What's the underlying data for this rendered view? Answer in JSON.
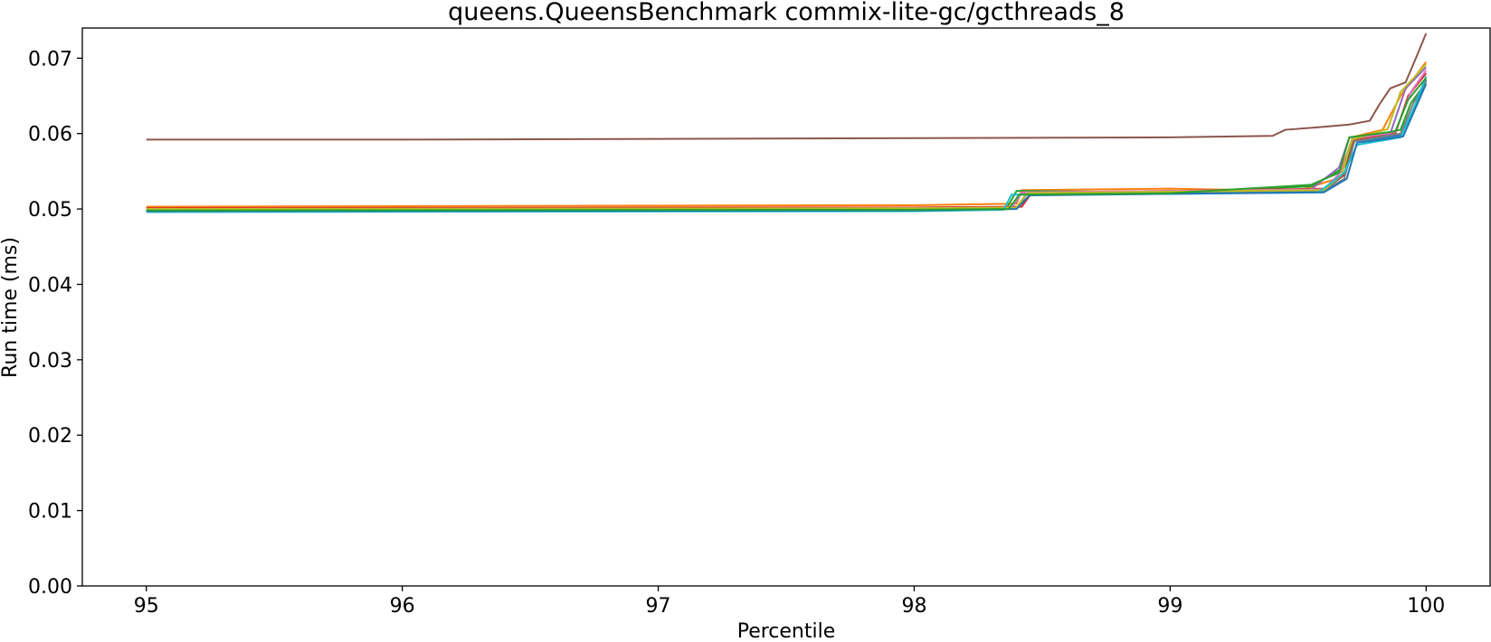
{
  "chart_data": {
    "type": "line",
    "title": "queens.QueensBenchmark commix-lite-gc/gcthreads_8",
    "xlabel": "Percentile",
    "ylabel": "Run time (ms)",
    "xlim": [
      94.75,
      100.25
    ],
    "ylim": [
      0.0,
      0.074
    ],
    "xticks": [
      95,
      96,
      97,
      98,
      99,
      100
    ],
    "yticks": [
      0.0,
      0.01,
      0.02,
      0.03,
      0.04,
      0.05,
      0.06,
      0.07
    ],
    "xtick_labels": [
      "95",
      "96",
      "97",
      "98",
      "99",
      "100"
    ],
    "ytick_labels": [
      "0.00",
      "0.01",
      "0.02",
      "0.03",
      "0.04",
      "0.05",
      "0.06",
      "0.07"
    ],
    "grid": false,
    "legend": "none",
    "series": [
      {
        "color": "#1f77b4",
        "points": [
          [
            95,
            0.0499
          ],
          [
            98.0,
            0.05
          ],
          [
            98.4,
            0.0502
          ],
          [
            98.46,
            0.052
          ],
          [
            99.0,
            0.0522
          ],
          [
            99.6,
            0.0525
          ],
          [
            99.68,
            0.0545
          ],
          [
            99.72,
            0.059
          ],
          [
            99.9,
            0.0598
          ],
          [
            99.95,
            0.063
          ],
          [
            100,
            0.0672
          ]
        ]
      },
      {
        "color": "#ff7f0e",
        "points": [
          [
            95,
            0.0503
          ],
          [
            98.0,
            0.0505
          ],
          [
            98.4,
            0.0507
          ],
          [
            98.42,
            0.0525
          ],
          [
            99.0,
            0.0527
          ],
          [
            99.5,
            0.0524
          ],
          [
            99.65,
            0.054
          ],
          [
            99.72,
            0.0596
          ],
          [
            99.83,
            0.0605
          ],
          [
            99.9,
            0.065
          ],
          [
            100,
            0.0695
          ]
        ]
      },
      {
        "color": "#2ca02c",
        "points": [
          [
            95,
            0.0498
          ],
          [
            98.0,
            0.0499
          ],
          [
            98.36,
            0.05
          ],
          [
            98.4,
            0.0524
          ],
          [
            99.0,
            0.0522
          ],
          [
            99.55,
            0.053
          ],
          [
            99.68,
            0.0555
          ],
          [
            99.72,
            0.0592
          ],
          [
            99.9,
            0.0605
          ],
          [
            99.94,
            0.064
          ],
          [
            100,
            0.0668
          ]
        ]
      },
      {
        "color": "#d62728",
        "points": [
          [
            95,
            0.0501
          ],
          [
            98.0,
            0.0502
          ],
          [
            98.42,
            0.0503
          ],
          [
            98.46,
            0.0522
          ],
          [
            99.0,
            0.0524
          ],
          [
            99.6,
            0.0527
          ],
          [
            99.68,
            0.0545
          ],
          [
            99.72,
            0.0592
          ],
          [
            99.88,
            0.06
          ],
          [
            99.93,
            0.065
          ],
          [
            100,
            0.068
          ]
        ]
      },
      {
        "color": "#9467bd",
        "points": [
          [
            95,
            0.0499
          ],
          [
            98.0,
            0.05
          ],
          [
            98.38,
            0.0501
          ],
          [
            98.42,
            0.0521
          ],
          [
            99.0,
            0.0523
          ],
          [
            99.55,
            0.0526
          ],
          [
            99.66,
            0.0555
          ],
          [
            99.7,
            0.0595
          ],
          [
            99.86,
            0.06
          ],
          [
            99.92,
            0.066
          ],
          [
            100,
            0.0688
          ]
        ]
      },
      {
        "color": "#8c564b",
        "points": [
          [
            95,
            0.0592
          ],
          [
            96.0,
            0.0592
          ],
          [
            97.0,
            0.0593
          ],
          [
            98.0,
            0.0594
          ],
          [
            99.0,
            0.0595
          ],
          [
            99.4,
            0.0597
          ],
          [
            99.45,
            0.0605
          ],
          [
            99.6,
            0.0609
          ],
          [
            99.7,
            0.0612
          ],
          [
            99.78,
            0.0617
          ],
          [
            99.82,
            0.064
          ],
          [
            99.86,
            0.066
          ],
          [
            99.92,
            0.0668
          ],
          [
            99.96,
            0.07
          ],
          [
            100,
            0.0733
          ]
        ]
      },
      {
        "color": "#e377c2",
        "points": [
          [
            95,
            0.05
          ],
          [
            98.0,
            0.0501
          ],
          [
            98.38,
            0.0502
          ],
          [
            98.42,
            0.0522
          ],
          [
            99.0,
            0.0524
          ],
          [
            99.6,
            0.0526
          ],
          [
            99.67,
            0.055
          ],
          [
            99.71,
            0.0593
          ],
          [
            99.88,
            0.0602
          ],
          [
            99.94,
            0.0655
          ],
          [
            100,
            0.0684
          ]
        ]
      },
      {
        "color": "#7f7f7f",
        "points": [
          [
            95,
            0.0499
          ],
          [
            98.0,
            0.05
          ],
          [
            98.4,
            0.0501
          ],
          [
            98.44,
            0.052
          ],
          [
            99.0,
            0.0522
          ],
          [
            99.6,
            0.0524
          ],
          [
            99.68,
            0.054
          ],
          [
            99.72,
            0.059
          ],
          [
            99.9,
            0.06
          ],
          [
            99.95,
            0.064
          ],
          [
            100,
            0.067
          ]
        ]
      },
      {
        "color": "#bcbd22",
        "points": [
          [
            95,
            0.05
          ],
          [
            98.0,
            0.0501
          ],
          [
            98.4,
            0.0502
          ],
          [
            98.44,
            0.0521
          ],
          [
            99.0,
            0.0523
          ],
          [
            99.6,
            0.0525
          ],
          [
            99.67,
            0.0545
          ],
          [
            99.71,
            0.0592
          ],
          [
            99.85,
            0.0606
          ],
          [
            99.9,
            0.0655
          ],
          [
            100,
            0.0692
          ]
        ]
      },
      {
        "color": "#17becf",
        "points": [
          [
            95,
            0.0496
          ],
          [
            98.0,
            0.0497
          ],
          [
            98.35,
            0.0499
          ],
          [
            98.38,
            0.0519
          ],
          [
            99.0,
            0.052
          ],
          [
            99.58,
            0.0522
          ],
          [
            99.68,
            0.0548
          ],
          [
            99.73,
            0.0585
          ],
          [
            99.9,
            0.0595
          ],
          [
            99.96,
            0.064
          ],
          [
            100,
            0.0676
          ]
        ]
      },
      {
        "color": "#1f77b4",
        "points": [
          [
            95,
            0.0497
          ],
          [
            98.0,
            0.0498
          ],
          [
            98.4,
            0.05
          ],
          [
            98.45,
            0.0518
          ],
          [
            99.0,
            0.052
          ],
          [
            99.6,
            0.0522
          ],
          [
            99.69,
            0.054
          ],
          [
            99.73,
            0.0588
          ],
          [
            99.91,
            0.0596
          ],
          [
            99.96,
            0.0635
          ],
          [
            100,
            0.0666
          ]
        ]
      },
      {
        "color": "#2ca02c",
        "points": [
          [
            95,
            0.0498
          ],
          [
            98.0,
            0.0499
          ],
          [
            98.37,
            0.05
          ],
          [
            98.41,
            0.0519
          ],
          [
            99.0,
            0.0521
          ],
          [
            99.55,
            0.0532
          ],
          [
            99.66,
            0.0548
          ],
          [
            99.7,
            0.0595
          ],
          [
            99.88,
            0.0603
          ],
          [
            99.93,
            0.0645
          ],
          [
            100,
            0.0674
          ]
        ]
      }
    ]
  }
}
